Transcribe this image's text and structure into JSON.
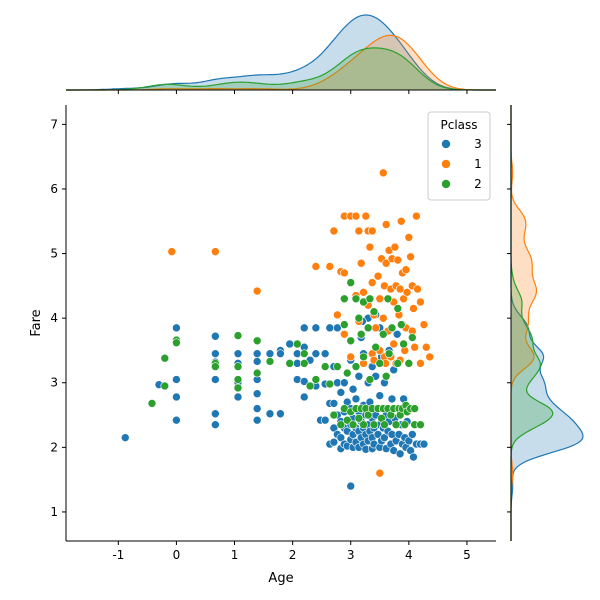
{
  "chart_data": {
    "type": "scatter",
    "xlabel": "Age",
    "ylabel": "Fare",
    "xlim": [
      -1.9,
      5.5
    ],
    "ylim": [
      0.55,
      7.3
    ],
    "x_ticks": [
      -1,
      0,
      1,
      2,
      3,
      4,
      5
    ],
    "y_ticks": [
      1,
      2,
      3,
      4,
      5,
      6,
      7
    ],
    "grid": false,
    "marginals": "kde",
    "legend": {
      "title": "Pclass",
      "position": "top-right",
      "entries": [
        {
          "label": "3",
          "color": "#1f77b4"
        },
        {
          "label": "1",
          "color": "#ff7f0e"
        },
        {
          "label": "2",
          "color": "#2ca02c"
        }
      ]
    },
    "series": [
      {
        "name": "3",
        "color": "#1f77b4",
        "points": [
          [
            -0.88,
            2.15
          ],
          [
            -0.3,
            2.97
          ],
          [
            0,
            3.85
          ],
          [
            0,
            3.05
          ],
          [
            0,
            2.42
          ],
          [
            0,
            2.78
          ],
          [
            0.67,
            3.72
          ],
          [
            0.67,
            3.45
          ],
          [
            0.67,
            3.32
          ],
          [
            0.67,
            3.05
          ],
          [
            0.67,
            2.52
          ],
          [
            0.67,
            2.35
          ],
          [
            1.06,
            3.45
          ],
          [
            1.06,
            3.3
          ],
          [
            1.06,
            3.0
          ],
          [
            1.06,
            2.78
          ],
          [
            1.39,
            3.45
          ],
          [
            1.39,
            3.33
          ],
          [
            1.39,
            3.05
          ],
          [
            1.39,
            2.83
          ],
          [
            1.39,
            2.6
          ],
          [
            1.39,
            2.42
          ],
          [
            1.61,
            3.45
          ],
          [
            1.61,
            2.52
          ],
          [
            1.79,
            3.5
          ],
          [
            1.79,
            3.45
          ],
          [
            1.79,
            2.52
          ],
          [
            1.95,
            3.6
          ],
          [
            2.08,
            3.45
          ],
          [
            2.08,
            3.3
          ],
          [
            2.08,
            3.05
          ],
          [
            2.2,
            3.85
          ],
          [
            2.2,
            3.55
          ],
          [
            2.2,
            3.02
          ],
          [
            2.2,
            2.78
          ],
          [
            2.3,
            3.35
          ],
          [
            2.4,
            3.85
          ],
          [
            2.4,
            3.45
          ],
          [
            2.4,
            2.95
          ],
          [
            2.48,
            2.42
          ],
          [
            2.56,
            3.45
          ],
          [
            2.56,
            2.98
          ],
          [
            2.56,
            2.42
          ],
          [
            2.64,
            3.85
          ],
          [
            2.64,
            2.68
          ],
          [
            2.64,
            2.05
          ],
          [
            2.71,
            3.25
          ],
          [
            2.71,
            2.68
          ],
          [
            2.71,
            2.3
          ],
          [
            2.71,
            2.08
          ],
          [
            2.77,
            3.85
          ],
          [
            2.77,
            3.0
          ],
          [
            2.77,
            2.5
          ],
          [
            2.77,
            2.2
          ],
          [
            2.83,
            2.85
          ],
          [
            2.83,
            2.4
          ],
          [
            2.83,
            2.15
          ],
          [
            2.83,
            1.98
          ],
          [
            2.89,
            3.0
          ],
          [
            2.89,
            2.55
          ],
          [
            2.89,
            2.3
          ],
          [
            2.89,
            2.05
          ],
          [
            2.94,
            2.7
          ],
          [
            2.94,
            2.25
          ],
          [
            2.94,
            2.02
          ],
          [
            3.0,
            3.35
          ],
          [
            3.0,
            2.6
          ],
          [
            3.0,
            2.35
          ],
          [
            3.0,
            2.12
          ],
          [
            3.0,
            1.4
          ],
          [
            3.04,
            2.9
          ],
          [
            3.04,
            2.45
          ],
          [
            3.04,
            2.2
          ],
          [
            3.04,
            2.0
          ],
          [
            3.09,
            2.75
          ],
          [
            3.09,
            2.3
          ],
          [
            3.09,
            2.08
          ],
          [
            3.14,
            3.1
          ],
          [
            3.14,
            2.55
          ],
          [
            3.14,
            2.25
          ],
          [
            3.14,
            2.0
          ],
          [
            3.18,
            3.7
          ],
          [
            3.18,
            2.4
          ],
          [
            3.18,
            2.15
          ],
          [
            3.22,
            3.45
          ],
          [
            3.22,
            2.65
          ],
          [
            3.22,
            2.3
          ],
          [
            3.22,
            2.05
          ],
          [
            3.26,
            2.5
          ],
          [
            3.26,
            2.2
          ],
          [
            3.26,
            1.97
          ],
          [
            3.3,
            4.0
          ],
          [
            3.3,
            3.0
          ],
          [
            3.3,
            2.35
          ],
          [
            3.3,
            2.1
          ],
          [
            3.33,
            2.7
          ],
          [
            3.33,
            2.25
          ],
          [
            3.37,
            3.25
          ],
          [
            3.37,
            2.45
          ],
          [
            3.37,
            2.15
          ],
          [
            3.37,
            1.98
          ],
          [
            3.4,
            2.6
          ],
          [
            3.4,
            2.3
          ],
          [
            3.4,
            2.05
          ],
          [
            3.43,
            4.05
          ],
          [
            3.43,
            3.1
          ],
          [
            3.43,
            2.5
          ],
          [
            3.47,
            2.2
          ],
          [
            3.5,
            2.8
          ],
          [
            3.5,
            2.35
          ],
          [
            3.5,
            2.0
          ],
          [
            3.53,
            3.4
          ],
          [
            3.53,
            2.6
          ],
          [
            3.53,
            2.1
          ],
          [
            3.56,
            2.3
          ],
          [
            3.58,
            3.0
          ],
          [
            3.58,
            2.15
          ],
          [
            3.61,
            2.5
          ],
          [
            3.61,
            1.98
          ],
          [
            3.64,
            2.25
          ],
          [
            3.66,
            3.5
          ],
          [
            3.66,
            2.4
          ],
          [
            3.69,
            2.05
          ],
          [
            3.71,
            2.75
          ],
          [
            3.71,
            2.2
          ],
          [
            3.74,
            3.2
          ],
          [
            3.74,
            1.95
          ],
          [
            3.76,
            2.45
          ],
          [
            3.78,
            2.1
          ],
          [
            3.81,
            2.6
          ],
          [
            3.83,
            2.2
          ],
          [
            3.85,
            1.9
          ],
          [
            3.87,
            2.35
          ],
          [
            3.89,
            2.05
          ],
          [
            3.91,
            2.75
          ],
          [
            3.93,
            2.15
          ],
          [
            3.95,
            2.0
          ],
          [
            3.97,
            2.4
          ],
          [
            4.0,
            2.1
          ],
          [
            4.03,
            1.95
          ],
          [
            4.06,
            2.2
          ],
          [
            4.08,
            1.85
          ],
          [
            4.13,
            2.05
          ],
          [
            4.2,
            2.05
          ],
          [
            4.26,
            2.05
          ],
          [
            3.2,
            3.95
          ],
          [
            3.5,
            3.85
          ],
          [
            3.8,
            3.75
          ]
        ]
      },
      {
        "name": "1",
        "color": "#ff7f0e",
        "points": [
          [
            -0.08,
            5.03
          ],
          [
            0.67,
            5.03
          ],
          [
            1.39,
            4.42
          ],
          [
            2.4,
            4.8
          ],
          [
            2.64,
            4.8
          ],
          [
            2.71,
            5.35
          ],
          [
            2.77,
            4.05
          ],
          [
            2.83,
            4.72
          ],
          [
            2.89,
            5.58
          ],
          [
            2.89,
            4.7
          ],
          [
            2.89,
            3.75
          ],
          [
            3.0,
            5.58
          ],
          [
            3.0,
            4.55
          ],
          [
            3.0,
            3.4
          ],
          [
            3.09,
            5.58
          ],
          [
            3.09,
            4.35
          ],
          [
            3.14,
            5.35
          ],
          [
            3.14,
            3.95
          ],
          [
            3.18,
            4.85
          ],
          [
            3.22,
            4.4
          ],
          [
            3.22,
            3.3
          ],
          [
            3.26,
            5.58
          ],
          [
            3.3,
            5.35
          ],
          [
            3.3,
            4.2
          ],
          [
            3.33,
            5.1
          ],
          [
            3.37,
            5.35
          ],
          [
            3.37,
            4.55
          ],
          [
            3.37,
            3.45
          ],
          [
            3.4,
            4.05
          ],
          [
            3.43,
            3.85
          ],
          [
            3.47,
            4.65
          ],
          [
            3.5,
            4.3
          ],
          [
            3.5,
            3.5
          ],
          [
            3.53,
            4.92
          ],
          [
            3.56,
            6.25
          ],
          [
            3.56,
            4.0
          ],
          [
            3.58,
            4.5
          ],
          [
            3.58,
            3.4
          ],
          [
            3.61,
            5.45
          ],
          [
            3.61,
            4.85
          ],
          [
            3.64,
            4.3
          ],
          [
            3.64,
            3.8
          ],
          [
            3.66,
            5.05
          ],
          [
            3.69,
            4.45
          ],
          [
            3.69,
            3.4
          ],
          [
            3.71,
            4.92
          ],
          [
            3.74,
            4.25
          ],
          [
            3.74,
            3.6
          ],
          [
            3.76,
            5.1
          ],
          [
            3.78,
            4.5
          ],
          [
            3.78,
            3.3
          ],
          [
            3.81,
            4.9
          ],
          [
            3.83,
            4.05
          ],
          [
            3.85,
            4.45
          ],
          [
            3.85,
            3.35
          ],
          [
            3.87,
            5.5
          ],
          [
            3.89,
            4.7
          ],
          [
            3.89,
            3.9
          ],
          [
            3.91,
            4.3
          ],
          [
            3.93,
            3.5
          ],
          [
            3.95,
            4.75
          ],
          [
            3.95,
            3.85
          ],
          [
            3.97,
            4.4
          ],
          [
            4.0,
            5.25
          ],
          [
            4.0,
            3.3
          ],
          [
            4.03,
            4.95
          ],
          [
            4.06,
            4.5
          ],
          [
            4.06,
            3.8
          ],
          [
            4.08,
            4.15
          ],
          [
            4.1,
            3.55
          ],
          [
            4.13,
            5.58
          ],
          [
            4.15,
            4.45
          ],
          [
            4.2,
            4.25
          ],
          [
            4.2,
            3.3
          ],
          [
            4.26,
            3.9
          ],
          [
            4.3,
            3.55
          ],
          [
            4.36,
            3.4
          ],
          [
            3.5,
            1.6
          ],
          [
            3.4,
            3.35
          ],
          [
            3.6,
            3.3
          ]
        ]
      },
      {
        "name": "2",
        "color": "#2ca02c",
        "points": [
          [
            -0.42,
            2.68
          ],
          [
            -0.2,
            2.95
          ],
          [
            -0.2,
            3.38
          ],
          [
            0,
            3.66
          ],
          [
            0,
            3.62
          ],
          [
            0.67,
            3.3
          ],
          [
            0.67,
            3.25
          ],
          [
            1.06,
            3.73
          ],
          [
            1.06,
            3.25
          ],
          [
            1.06,
            3.05
          ],
          [
            1.06,
            2.92
          ],
          [
            1.39,
            3.65
          ],
          [
            1.39,
            3.15
          ],
          [
            1.61,
            3.33
          ],
          [
            1.95,
            3.3
          ],
          [
            2.08,
            3.6
          ],
          [
            2.2,
            3.45
          ],
          [
            2.2,
            3.3
          ],
          [
            2.3,
            2.95
          ],
          [
            2.4,
            3.05
          ],
          [
            2.56,
            3.25
          ],
          [
            2.64,
            2.98
          ],
          [
            2.71,
            2.5
          ],
          [
            2.77,
            3.25
          ],
          [
            2.83,
            2.35
          ],
          [
            2.89,
            4.3
          ],
          [
            2.89,
            3.9
          ],
          [
            2.89,
            2.6
          ],
          [
            2.94,
            3.15
          ],
          [
            2.94,
            2.42
          ],
          [
            3.0,
            4.55
          ],
          [
            3.0,
            3.65
          ],
          [
            3.0,
            2.55
          ],
          [
            3.04,
            2.35
          ],
          [
            3.09,
            4.3
          ],
          [
            3.09,
            3.25
          ],
          [
            3.09,
            2.6
          ],
          [
            3.14,
            4.0
          ],
          [
            3.14,
            2.45
          ],
          [
            3.18,
            3.75
          ],
          [
            3.18,
            2.6
          ],
          [
            3.22,
            4.25
          ],
          [
            3.22,
            3.4
          ],
          [
            3.22,
            2.35
          ],
          [
            3.26,
            2.6
          ],
          [
            3.3,
            3.85
          ],
          [
            3.3,
            2.5
          ],
          [
            3.33,
            4.3
          ],
          [
            3.33,
            3.05
          ],
          [
            3.37,
            2.6
          ],
          [
            3.4,
            4.1
          ],
          [
            3.4,
            2.35
          ],
          [
            3.43,
            3.55
          ],
          [
            3.47,
            2.6
          ],
          [
            3.5,
            3.3
          ],
          [
            3.53,
            2.45
          ],
          [
            3.56,
            3.75
          ],
          [
            3.56,
            2.6
          ],
          [
            3.58,
            2.35
          ],
          [
            3.61,
            3.1
          ],
          [
            3.64,
            4.3
          ],
          [
            3.64,
            2.6
          ],
          [
            3.66,
            3.45
          ],
          [
            3.69,
            2.5
          ],
          [
            3.71,
            3.85
          ],
          [
            3.74,
            2.6
          ],
          [
            3.78,
            2.35
          ],
          [
            3.81,
            4.15
          ],
          [
            3.81,
            3.3
          ],
          [
            3.83,
            2.6
          ],
          [
            3.85,
            2.5
          ],
          [
            3.87,
            3.9
          ],
          [
            3.89,
            2.6
          ],
          [
            3.91,
            3.6
          ],
          [
            3.93,
            2.35
          ],
          [
            3.95,
            2.65
          ],
          [
            3.97,
            2.55
          ],
          [
            4.0,
            3.3
          ],
          [
            4.03,
            2.6
          ],
          [
            4.06,
            3.7
          ],
          [
            4.1,
            2.35
          ],
          [
            4.2,
            2.35
          ],
          [
            4.1,
            2.6
          ]
        ]
      }
    ]
  }
}
